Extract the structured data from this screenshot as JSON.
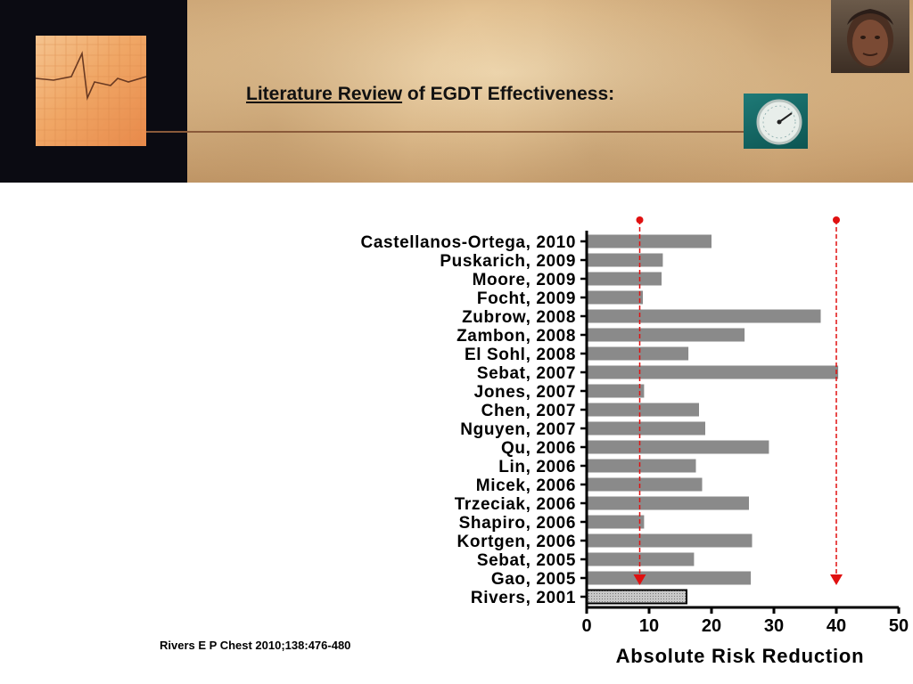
{
  "header": {
    "title_underlined": "Literature Review",
    "title_rest": " of EGDT Effectiveness:",
    "images": [
      "ecg-strip-photo",
      "patient-portrait-photo",
      "blood-pressure-gauge-photo"
    ]
  },
  "chart_data": {
    "type": "bar",
    "orientation": "horizontal",
    "categories": [
      "Castellanos-Ortega, 2010",
      "Puskarich, 2009",
      "Moore, 2009",
      "Focht, 2009",
      "Zubrow, 2008",
      "Zambon, 2008",
      "El Sohl, 2008",
      "Sebat, 2007",
      "Jones, 2007",
      "Chen, 2007",
      "Nguyen, 2007",
      "Qu, 2006",
      "Lin, 2006",
      "Micek, 2006",
      "Trzeciak, 2006",
      "Shapiro, 2006",
      "Kortgen, 2006",
      "Sebat, 2005",
      "Gao, 2005",
      "Rivers, 2001"
    ],
    "values": [
      20,
      12.2,
      12,
      9,
      37.5,
      25.3,
      16.3,
      40.3,
      9.2,
      18,
      19,
      29.2,
      17.5,
      18.5,
      26,
      9.2,
      26.5,
      17.2,
      26.3,
      16
    ],
    "highlighted_category": "Rivers, 2001",
    "xlabel": "Absolute Risk Reduction",
    "xlim": [
      0,
      50
    ],
    "xticks": [
      "0",
      "10",
      "20",
      "30",
      "40",
      "50"
    ],
    "reference_lines": [
      8.5,
      40
    ],
    "colors": {
      "bar": "#8a8a8a",
      "highlight_bar": "#c8c8c8",
      "reference": "#e01010",
      "axis": "#000000"
    },
    "grid": false,
    "legend": "none"
  },
  "citation": "Rivers E P Chest 2010;138:476-480"
}
